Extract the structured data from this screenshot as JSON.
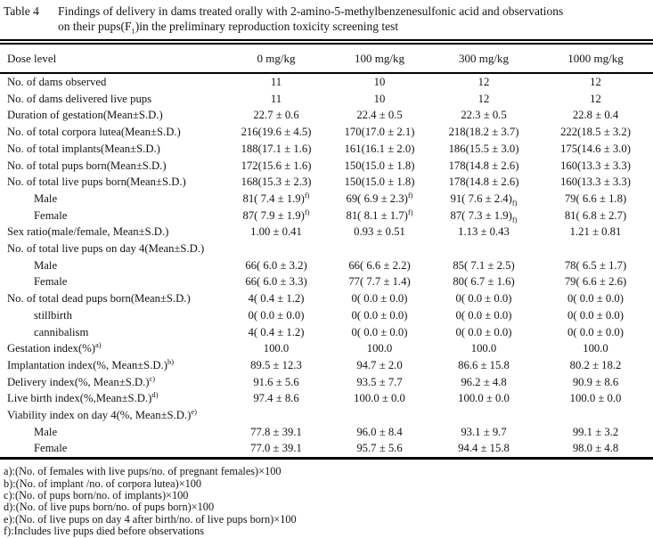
{
  "table": {
    "label": "Table 4",
    "caption_line1": "Findings of delivery in dams treated orally with 2-amino-5-methylbenzenesulfonic acid and observations",
    "caption_line2": "on their pups(F_{1})in the preliminary reproduction toxicity screening test",
    "columns": [
      "Dose level",
      "0 mg/kg",
      "100 mg/kg",
      "300 mg/kg",
      "1000 mg/kg"
    ],
    "rows": [
      {
        "label": "No. of dams observed",
        "indent": 0,
        "values": [
          "11",
          "10",
          "12",
          "12"
        ]
      },
      {
        "label": "No. of dams delivered live pups",
        "indent": 0,
        "values": [
          "11",
          "10",
          "12",
          "12"
        ]
      },
      {
        "label": "Duration of gestation(Mean±S.D.)",
        "indent": 0,
        "values": [
          "22.7 ± 0.6",
          "22.4 ± 0.5",
          "22.3 ± 0.5",
          "22.8 ± 0.4"
        ]
      },
      {
        "label": "No. of total corpora lutea(Mean±S.D.)",
        "indent": 0,
        "values": [
          "216(19.6 ± 4.5)",
          "170(17.0 ± 2.1)",
          "218(18.2 ± 3.7)",
          "222(18.5 ± 3.2)"
        ]
      },
      {
        "label": "No. of total implants(Mean±S.D.)",
        "indent": 0,
        "values": [
          "188(17.1 ± 1.6)",
          "161(16.1 ± 2.0)",
          "186(15.5 ± 3.0)",
          "175(14.6 ± 3.0)"
        ]
      },
      {
        "label": "No. of total pups born(Mean±S.D.)",
        "indent": 0,
        "values": [
          "172(15.6 ± 1.6)",
          "150(15.0 ± 1.8)",
          "178(14.8 ± 2.6)",
          "160(13.3 ± 3.3)"
        ]
      },
      {
        "label": "No. of total live pups born(Mean±S.D.)",
        "indent": 0,
        "values": [
          "168(15.3 ± 2.3)",
          "150(15.0 ± 1.8)",
          "178(14.8 ± 2.6)",
          "160(13.3 ± 3.3)"
        ]
      },
      {
        "label": "Male",
        "indent": 1,
        "values": [
          "81( 7.4 ± 1.9)^{f)}",
          "69( 6.9 ± 2.3)^{f)}",
          "91( 7.6 ± 2.4)_{f)}",
          "79( 6.6 ± 1.8)"
        ]
      },
      {
        "label": "Female",
        "indent": 1,
        "values": [
          "87( 7.9 ± 1.9)^{f)}",
          "81( 8.1 ± 1.7)^{f)}",
          "87( 7.3 ± 1.9)_{f)}",
          "81( 6.8 ± 2.7)"
        ]
      },
      {
        "label": "Sex ratio(male/female, Mean±S.D.)",
        "indent": 0,
        "values": [
          "1.00 ± 0.41",
          "0.93 ± 0.51",
          "1.13 ± 0.43",
          "1.21 ± 0.81"
        ]
      },
      {
        "label": "No. of total live pups on day 4(Mean±S.D.)",
        "indent": 0,
        "values": [
          "",
          "",
          "",
          ""
        ]
      },
      {
        "label": "Male",
        "indent": 1,
        "values": [
          "66( 6.0 ± 3.2)",
          "66( 6.6 ± 2.2)",
          "85( 7.1 ± 2.5)",
          "78( 6.5 ± 1.7)"
        ]
      },
      {
        "label": "Female",
        "indent": 1,
        "values": [
          "66( 6.0 ± 3.3)",
          "77( 7.7 ± 1.4)",
          "80( 6.7 ± 1.6)",
          "79( 6.6 ± 2.6)"
        ]
      },
      {
        "label": "No. of total dead pups born(Mean±S.D.)",
        "indent": 0,
        "values": [
          "4( 0.4 ± 1.2)",
          "0( 0.0 ± 0.0)",
          "0( 0.0 ± 0.0)",
          "0( 0.0 ± 0.0)"
        ]
      },
      {
        "label": "stillbirth",
        "indent": 1,
        "values": [
          "0( 0.0 ± 0.0)",
          "0( 0.0 ± 0.0)",
          "0( 0.0 ± 0.0)",
          "0( 0.0 ± 0.0)"
        ]
      },
      {
        "label": "cannibalism",
        "indent": 1,
        "values": [
          "4( 0.4 ± 1.2)",
          "0( 0.0 ± 0.0)",
          "0( 0.0 ± 0.0)",
          "0( 0.0 ± 0.0)"
        ]
      },
      {
        "label": "Gestation index(%)^{a)}",
        "indent": 0,
        "values": [
          "100.0",
          "100.0",
          "100.0",
          "100.0"
        ]
      },
      {
        "label": "Implantation index(%, Mean±S.D.)^{b)}",
        "indent": 0,
        "values": [
          "89.5 ± 12.3",
          "94.7 ± 2.0",
          "86.6 ± 15.8",
          "80.2 ± 18.2"
        ]
      },
      {
        "label": "Delivery index(%, Mean±S.D.)^{c)}",
        "indent": 0,
        "values": [
          "91.6 ± 5.6",
          "93.5 ± 7.7",
          "96.2 ± 4.8",
          "90.9 ± 8.6"
        ]
      },
      {
        "label": "Live birth index(%,Mean±S.D.)^{d)}",
        "indent": 0,
        "values": [
          "97.4 ± 8.6",
          "100.0 ± 0.0",
          "100.0 ± 0.0",
          "100.0 ± 0.0"
        ]
      },
      {
        "label": "Viability index on day 4(%, Mean±S.D.)^{e)}",
        "indent": 0,
        "values": [
          "",
          "",
          "",
          ""
        ]
      },
      {
        "label": "Male",
        "indent": 1,
        "values": [
          "77.8 ± 39.1",
          "96.0 ± 8.4",
          "93.1 ± 9.7",
          "99.1 ± 3.2"
        ]
      },
      {
        "label": "Female",
        "indent": 1,
        "values": [
          "77.0 ± 39.1",
          "95.7 ± 5.6",
          "94.4 ± 15.8",
          "98.0 ± 4.8"
        ]
      }
    ],
    "footnotes": [
      "a):(No. of females with live pups/no. of pregnant females)×100",
      "b):(No. of implant /no. of corpora lutea)×100",
      "c):(No. of pups born/no. of implants)×100",
      "d):(No. of live pups born/no. of pups born)×100",
      "e):(No. of live pups on day 4 after birth/no. of live pups born)×100",
      "f):Includes live pups died before observations"
    ]
  }
}
